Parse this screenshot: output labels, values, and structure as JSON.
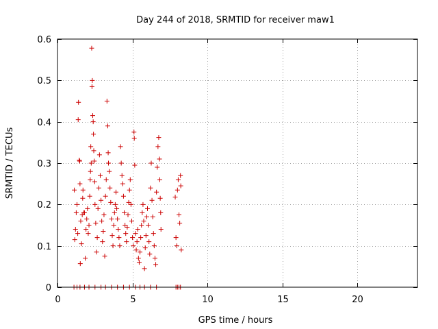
{
  "chart_data": {
    "type": "scatter",
    "title": "Day 244 of 2018, SRMTID for receiver maw1",
    "xlabel": "GPS time / hours",
    "ylabel": "SRMTID / TECUs",
    "xlim": [
      0,
      24
    ],
    "ylim": [
      0,
      0.6
    ],
    "xticks": [
      0,
      5,
      10,
      15,
      20
    ],
    "xtick_labels": [
      "0",
      "5",
      "10",
      "15",
      "20"
    ],
    "yticks": [
      0,
      0.1,
      0.2,
      0.3,
      0.4,
      0.5,
      0.6
    ],
    "ytick_labels": [
      "0",
      "0.1",
      "0.2",
      "0.3",
      "0.4",
      "0.5",
      "0.6"
    ],
    "grid": true,
    "marker": "+",
    "color": "#cc0000",
    "series": [
      {
        "name": "SRMTID",
        "points": [
          [
            1.12,
            0.235
          ],
          [
            1.15,
            0.115
          ],
          [
            1.2,
            0.14
          ],
          [
            1.25,
            0.18
          ],
          [
            1.3,
            0.2
          ],
          [
            1.35,
            0.13
          ],
          [
            1.38,
            0.405
          ],
          [
            1.4,
            0.447
          ],
          [
            1.45,
            0.307
          ],
          [
            1.48,
            0.305
          ],
          [
            1.5,
            0.25
          ],
          [
            1.52,
            0.057
          ],
          [
            1.55,
            0.16
          ],
          [
            1.6,
            0.105
          ],
          [
            1.65,
            0.175
          ],
          [
            1.68,
            0.215
          ],
          [
            1.7,
            0.235
          ],
          [
            1.75,
            0.18
          ],
          [
            1.8,
            0.18
          ],
          [
            1.85,
            0.07
          ],
          [
            1.9,
            0.14
          ],
          [
            1.95,
            0.165
          ],
          [
            2.0,
            0.19
          ],
          [
            2.05,
            0.13
          ],
          [
            2.1,
            0.15
          ],
          [
            2.15,
            0.22
          ],
          [
            2.18,
            0.26
          ],
          [
            2.2,
            0.28
          ],
          [
            2.22,
            0.34
          ],
          [
            2.25,
            0.3
          ],
          [
            2.28,
            0.578
          ],
          [
            2.3,
            0.485
          ],
          [
            2.32,
            0.5
          ],
          [
            2.35,
            0.415
          ],
          [
            2.38,
            0.4
          ],
          [
            2.4,
            0.37
          ],
          [
            2.42,
            0.33
          ],
          [
            2.45,
            0.305
          ],
          [
            2.48,
            0.255
          ],
          [
            2.5,
            0.2
          ],
          [
            2.55,
            0.155
          ],
          [
            2.6,
            0.085
          ],
          [
            2.65,
            0.12
          ],
          [
            2.7,
            0.19
          ],
          [
            2.75,
            0.24
          ],
          [
            2.8,
            0.32
          ],
          [
            2.85,
            0.27
          ],
          [
            2.9,
            0.21
          ],
          [
            2.95,
            0.16
          ],
          [
            3.0,
            0.11
          ],
          [
            3.05,
            0.135
          ],
          [
            3.1,
            0.175
          ],
          [
            3.15,
            0.075
          ],
          [
            3.2,
            0.22
          ],
          [
            3.25,
            0.26
          ],
          [
            3.3,
            0.45
          ],
          [
            3.35,
            0.39
          ],
          [
            3.38,
            0.325
          ],
          [
            3.4,
            0.3
          ],
          [
            3.45,
            0.28
          ],
          [
            3.5,
            0.24
          ],
          [
            3.55,
            0.205
          ],
          [
            3.6,
            0.165
          ],
          [
            3.65,
            0.125
          ],
          [
            3.7,
            0.1
          ],
          [
            3.75,
            0.15
          ],
          [
            3.8,
            0.18
          ],
          [
            3.85,
            0.2
          ],
          [
            3.9,
            0.23
          ],
          [
            3.95,
            0.19
          ],
          [
            4.0,
            0.165
          ],
          [
            4.05,
            0.14
          ],
          [
            4.1,
            0.12
          ],
          [
            4.15,
            0.1
          ],
          [
            4.2,
            0.34
          ],
          [
            4.25,
            0.3
          ],
          [
            4.3,
            0.27
          ],
          [
            4.35,
            0.25
          ],
          [
            4.4,
            0.22
          ],
          [
            4.45,
            0.18
          ],
          [
            4.5,
            0.15
          ],
          [
            4.55,
            0.13
          ],
          [
            4.6,
            0.11
          ],
          [
            4.65,
            0.145
          ],
          [
            4.7,
            0.175
          ],
          [
            4.75,
            0.205
          ],
          [
            4.8,
            0.235
          ],
          [
            4.85,
            0.26
          ],
          [
            4.9,
            0.2
          ],
          [
            4.95,
            0.16
          ],
          [
            5.0,
            0.12
          ],
          [
            5.05,
            0.1
          ],
          [
            5.1,
            0.375
          ],
          [
            5.12,
            0.36
          ],
          [
            5.15,
            0.295
          ],
          [
            5.2,
            0.13
          ],
          [
            5.25,
            0.09
          ],
          [
            5.3,
            0.11
          ],
          [
            5.35,
            0.14
          ],
          [
            5.4,
            0.07
          ],
          [
            5.45,
            0.06
          ],
          [
            5.5,
            0.085
          ],
          [
            5.55,
            0.12
          ],
          [
            5.6,
            0.15
          ],
          [
            5.65,
            0.18
          ],
          [
            5.7,
            0.2
          ],
          [
            5.75,
            0.16
          ],
          [
            5.8,
            0.045
          ],
          [
            5.85,
            0.095
          ],
          [
            5.9,
            0.125
          ],
          [
            5.95,
            0.17
          ],
          [
            6.0,
            0.19
          ],
          [
            6.05,
            0.15
          ],
          [
            6.1,
            0.11
          ],
          [
            6.15,
            0.08
          ],
          [
            6.2,
            0.24
          ],
          [
            6.25,
            0.3
          ],
          [
            6.3,
            0.21
          ],
          [
            6.35,
            0.17
          ],
          [
            6.4,
            0.13
          ],
          [
            6.45,
            0.1
          ],
          [
            6.5,
            0.07
          ],
          [
            6.55,
            0.055
          ],
          [
            6.6,
            0.23
          ],
          [
            6.65,
            0.29
          ],
          [
            6.7,
            0.34
          ],
          [
            6.75,
            0.362
          ],
          [
            6.8,
            0.31
          ],
          [
            6.82,
            0.26
          ],
          [
            6.85,
            0.215
          ],
          [
            6.88,
            0.18
          ],
          [
            6.9,
            0.14
          ],
          [
            7.85,
            0.218
          ],
          [
            7.9,
            0.12
          ],
          [
            7.95,
            0.1
          ],
          [
            8.0,
            0.235
          ],
          [
            8.05,
            0.26
          ],
          [
            8.1,
            0.175
          ],
          [
            8.15,
            0.155
          ],
          [
            8.2,
            0.27
          ],
          [
            8.22,
            0.245
          ],
          [
            8.25,
            0.09
          ],
          [
            1.1,
            0.0
          ],
          [
            1.3,
            0.0
          ],
          [
            1.5,
            0.0
          ],
          [
            1.8,
            0.0
          ],
          [
            2.1,
            0.0
          ],
          [
            2.5,
            0.0
          ],
          [
            2.9,
            0.0
          ],
          [
            3.2,
            0.0
          ],
          [
            3.6,
            0.0
          ],
          [
            4.0,
            0.0
          ],
          [
            4.4,
            0.0
          ],
          [
            4.8,
            0.0
          ],
          [
            5.2,
            0.0
          ],
          [
            5.5,
            0.0
          ],
          [
            5.8,
            0.0
          ],
          [
            6.2,
            0.0
          ],
          [
            6.6,
            0.0
          ],
          [
            7.9,
            0.0
          ],
          [
            8.0,
            0.0
          ],
          [
            8.1,
            0.0
          ],
          [
            8.2,
            0.0
          ]
        ]
      }
    ]
  }
}
